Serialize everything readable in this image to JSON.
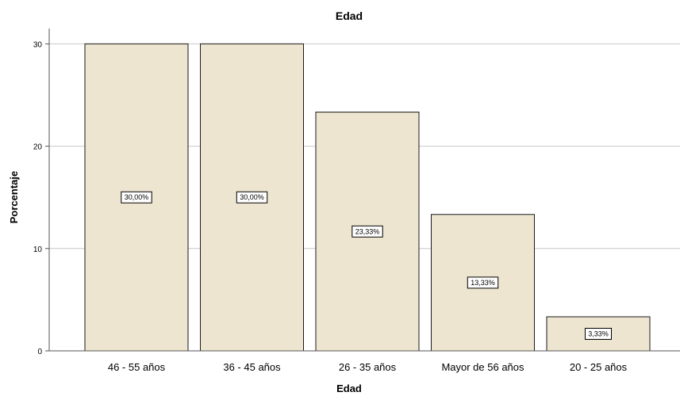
{
  "chart_data": {
    "type": "bar",
    "title": "Edad",
    "xlabel": "Edad",
    "ylabel": "Porcentaje",
    "categories": [
      "46 - 55 años",
      "36 - 45 años",
      "26 - 35 años",
      "Mayor de 56 años",
      "20 - 25 años"
    ],
    "values": [
      30.0,
      30.0,
      23.33,
      13.33,
      3.33
    ],
    "data_labels": [
      "30,00%",
      "30,00%",
      "23,33%",
      "13,33%",
      "3,33%"
    ],
    "ylim": [
      0,
      31.5
    ],
    "yticks": [
      0,
      10,
      20,
      30
    ],
    "ytick_labels": [
      "0",
      "10",
      "20",
      "30"
    ],
    "grid": true,
    "colors": {
      "bar_fill": "#ede5d0",
      "bar_stroke": "#1a1a1a",
      "grid": "#c8c8c8",
      "axis": "#555555"
    }
  }
}
